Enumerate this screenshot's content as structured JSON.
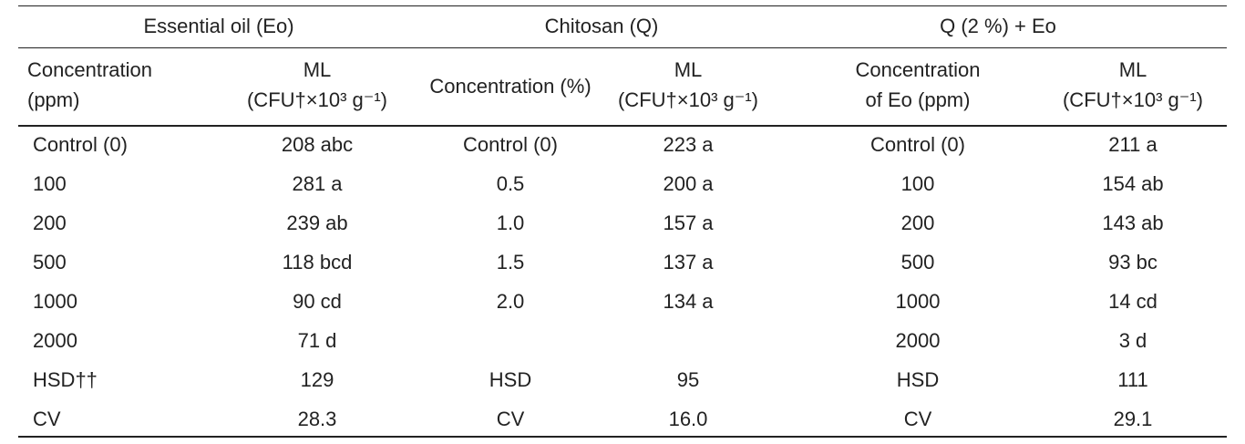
{
  "table": {
    "groups": [
      "Essential oil (Eo)",
      "Chitosan (Q)",
      "Q (2 %) + Eo"
    ],
    "header": [
      [
        "Concentration",
        "(ppm)"
      ],
      [
        "ML",
        "(CFU†×10³ g⁻¹)"
      ],
      [
        "Concentration (%)"
      ],
      [
        "ML",
        "(CFU†×10³ g⁻¹)"
      ],
      [
        "Concentration",
        "of Eo (ppm)"
      ],
      [
        "ML",
        "(CFU†×10³ g⁻¹)"
      ]
    ],
    "rows": [
      [
        "Control (0)",
        "208 abc",
        "Control (0)",
        "223 a",
        "Control (0)",
        "211 a"
      ],
      [
        "100",
        "281 a",
        "0.5",
        "200 a",
        "100",
        "154 ab"
      ],
      [
        "200",
        "239 ab",
        "1.0",
        "157 a",
        "200",
        "143 ab"
      ],
      [
        "500",
        "118 bcd",
        "1.5",
        "137 a",
        "500",
        "93 bc"
      ],
      [
        "1000",
        "90 cd",
        "2.0",
        "134 a",
        "1000",
        "14 cd"
      ],
      [
        "2000",
        "71 d",
        null,
        null,
        "2000",
        "3 d"
      ],
      [
        "HSD††",
        "129",
        "HSD",
        "95",
        "HSD",
        "111"
      ],
      [
        "CV",
        "28.3",
        "CV",
        "16.0",
        "CV",
        "29.1"
      ]
    ]
  }
}
